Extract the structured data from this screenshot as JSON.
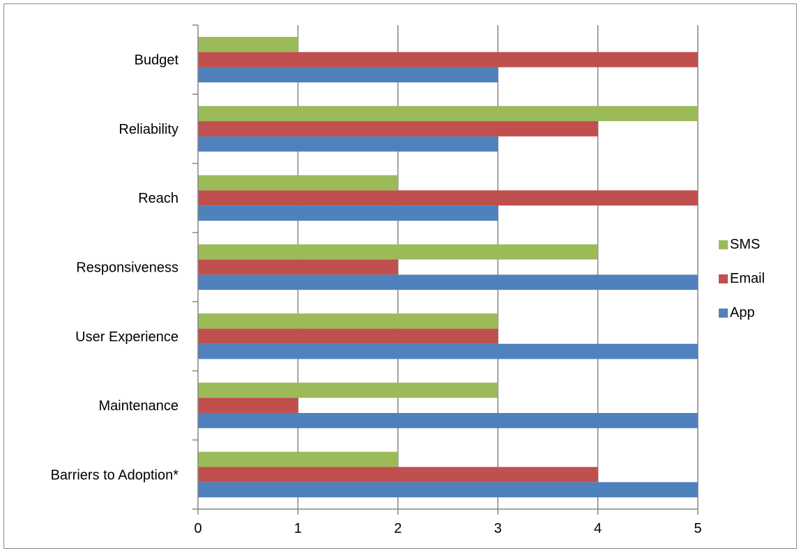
{
  "chart_data": {
    "type": "bar",
    "orientation": "horizontal",
    "title": "",
    "xlabel": "",
    "ylabel": "",
    "categories": [
      "Budget",
      "Reliability",
      "Reach",
      "Responsiveness",
      "User Experience",
      "Maintenance",
      "Barriers to Adoption*"
    ],
    "series": [
      {
        "name": "SMS",
        "color": "#9bbb59",
        "values": [
          1,
          5,
          2,
          4,
          3,
          3,
          2
        ]
      },
      {
        "name": "Email",
        "color": "#c0504d",
        "values": [
          5,
          4,
          5,
          2,
          3,
          1,
          4
        ]
      },
      {
        "name": "App",
        "color": "#4f81bd",
        "values": [
          3,
          3,
          3,
          5,
          5,
          5,
          5
        ]
      }
    ],
    "xlim": [
      0,
      5
    ],
    "xticks": [
      0,
      1,
      2,
      3,
      4,
      5
    ],
    "grid": true,
    "legend_position": "right"
  }
}
